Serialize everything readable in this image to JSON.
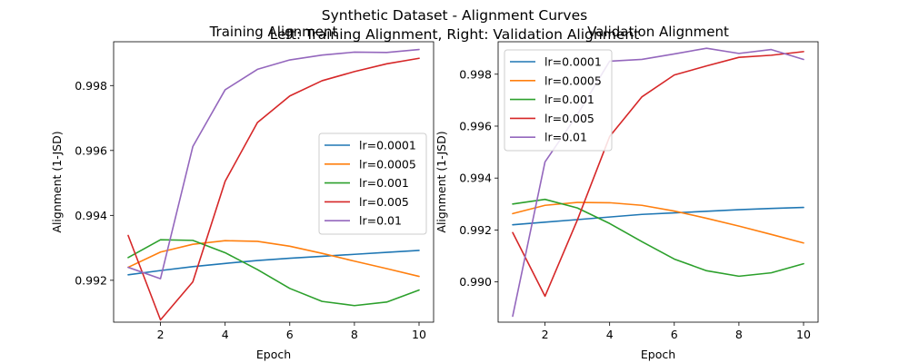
{
  "figure": {
    "suptitle_line1": "Synthetic Dataset - Alignment Curves",
    "suptitle_line2": "Left: Training Alignment, Right: Validation Alignment"
  },
  "chart_data": [
    {
      "type": "line",
      "title": "Training Alignment",
      "xlabel": "Epoch",
      "ylabel": "Alignment (1-JSD)",
      "xlim": [
        0.55,
        10.45
      ],
      "ylim": [
        0.99071,
        0.99935
      ],
      "xticks": [
        2,
        4,
        6,
        8,
        10
      ],
      "yticks": [
        0.992,
        0.994,
        0.996,
        0.998
      ],
      "ytick_labels": [
        "0.992",
        "0.994",
        "0.996",
        "0.998"
      ],
      "legend_position": "center-right",
      "x": [
        1,
        2,
        3,
        4,
        5,
        6,
        7,
        8,
        9,
        10
      ],
      "series": [
        {
          "name": "lr=0.0001",
          "color": "#1f77b4",
          "values": [
            0.99217,
            0.9923,
            0.99242,
            0.99252,
            0.99261,
            0.99268,
            0.99274,
            0.9928,
            0.99286,
            0.99292
          ]
        },
        {
          "name": "lr=0.0005",
          "color": "#ff7f0e",
          "values": [
            0.9924,
            0.99287,
            0.99311,
            0.99322,
            0.9932,
            0.99305,
            0.99283,
            0.99259,
            0.99236,
            0.99212
          ]
        },
        {
          "name": "lr=0.001",
          "color": "#2ca02c",
          "values": [
            0.9927,
            0.99325,
            0.99323,
            0.99285,
            0.99233,
            0.99175,
            0.99135,
            0.99122,
            0.99133,
            0.9917
          ]
        },
        {
          "name": "lr=0.005",
          "color": "#d62728",
          "values": [
            0.99338,
            0.99078,
            0.99195,
            0.99505,
            0.99686,
            0.99768,
            0.99815,
            0.99843,
            0.99867,
            0.99884
          ]
        },
        {
          "name": "lr=0.01",
          "color": "#9467bd",
          "values": [
            0.9924,
            0.99205,
            0.99612,
            0.99787,
            0.9985,
            0.99879,
            0.99894,
            0.99903,
            0.99902,
            0.99911
          ]
        }
      ]
    },
    {
      "type": "line",
      "title": "Validation Alignment",
      "xlabel": "Epoch",
      "ylabel": "Alignment (1-JSD)",
      "xlim": [
        0.55,
        10.45
      ],
      "ylim": [
        0.98845,
        0.99925
      ],
      "xticks": [
        2,
        4,
        6,
        8,
        10
      ],
      "yticks": [
        0.99,
        0.992,
        0.994,
        0.996,
        0.998
      ],
      "ytick_labels": [
        "0.990",
        "0.992",
        "0.994",
        "0.996",
        "0.998"
      ],
      "legend_position": "upper-left",
      "x": [
        1,
        2,
        3,
        4,
        5,
        6,
        7,
        8,
        9,
        10
      ],
      "series": [
        {
          "name": "lr=0.0001",
          "color": "#1f77b4",
          "values": [
            0.9922,
            0.9923,
            0.9924,
            0.9925,
            0.9926,
            0.99266,
            0.99272,
            0.99278,
            0.99283,
            0.99287
          ]
        },
        {
          "name": "lr=0.0005",
          "color": "#ff7f0e",
          "values": [
            0.99263,
            0.99295,
            0.99306,
            0.99305,
            0.99295,
            0.99273,
            0.99245,
            0.99215,
            0.99183,
            0.9915
          ]
        },
        {
          "name": "lr=0.001",
          "color": "#2ca02c",
          "values": [
            0.993,
            0.99318,
            0.99285,
            0.99225,
            0.99155,
            0.99088,
            0.99043,
            0.99022,
            0.99035,
            0.9907
          ]
        },
        {
          "name": "lr=0.005",
          "color": "#d62728",
          "values": [
            0.9919,
            0.98945,
            0.99238,
            0.9956,
            0.99713,
            0.99797,
            0.99832,
            0.99865,
            0.99873,
            0.99887
          ]
        },
        {
          "name": "lr=0.01",
          "color": "#9467bd",
          "values": [
            0.98868,
            0.99462,
            0.99644,
            0.9985,
            0.99857,
            0.99878,
            0.999,
            0.9988,
            0.99895,
            0.99857
          ]
        }
      ]
    }
  ]
}
